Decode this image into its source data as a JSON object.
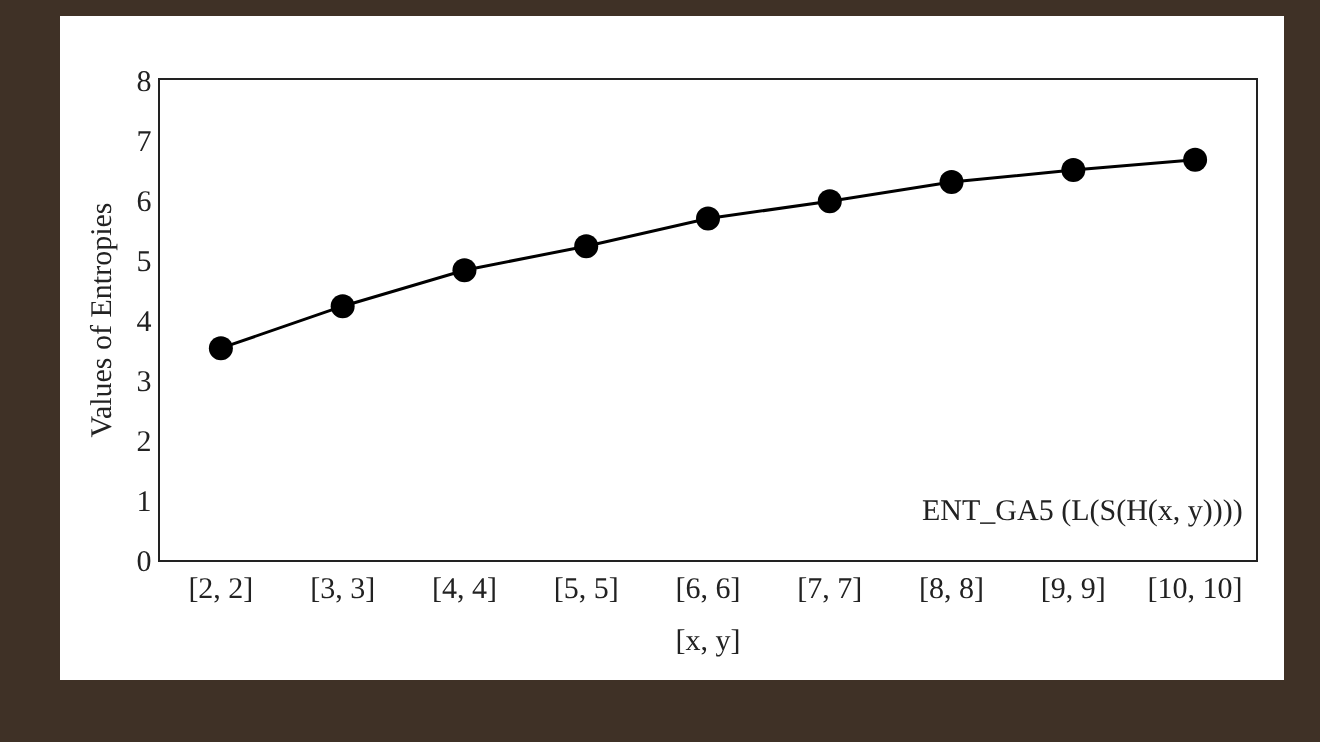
{
  "chart_data": {
    "type": "line",
    "xlabel": "[x, y]",
    "ylabel": "Values of Entropies",
    "categories": [
      "[2, 2]",
      "[3, 3]",
      "[4, 4]",
      "[5, 5]",
      "[6, 6]",
      "[7, 7]",
      "[8, 8]",
      "[9, 9]",
      "[10, 10]"
    ],
    "series": [
      {
        "color": "#000000",
        "values": [
          3.53,
          4.23,
          4.83,
          5.23,
          5.69,
          5.98,
          6.3,
          6.5,
          6.67
        ]
      }
    ],
    "ylim": [
      0,
      8
    ],
    "yticks": [
      0,
      1,
      2,
      3,
      4,
      5,
      6,
      7,
      8
    ],
    "grid": false,
    "marker": "circle",
    "line_style": "solid",
    "annotations": [
      "ENT_GA5 (L(S(H(x, y))))"
    ]
  }
}
